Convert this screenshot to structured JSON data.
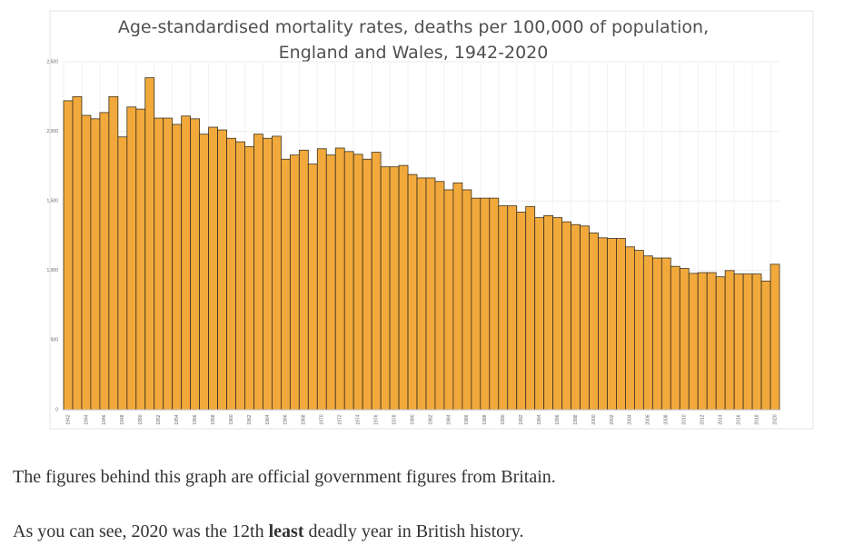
{
  "chart_data": {
    "type": "bar",
    "title": [
      "Age-standardised mortality rates, deaths per 100,000 of population,",
      "England and Wales, 1942-2020"
    ],
    "categories": [
      "1942",
      null,
      "1944",
      null,
      "1946",
      null,
      "1948",
      null,
      "1950",
      null,
      "1952",
      null,
      "1954",
      null,
      "1956",
      null,
      "1958",
      null,
      "1960",
      null,
      "1962",
      null,
      "1964",
      null,
      "1966",
      null,
      "1968",
      null,
      "1970",
      null,
      "1972",
      null,
      "1974",
      null,
      "1976",
      null,
      "1978",
      null,
      "1980",
      null,
      "1982",
      null,
      "1984",
      null,
      "1986",
      null,
      "1988",
      null,
      "1990",
      null,
      "1992",
      null,
      "1994",
      null,
      "1996",
      null,
      "1998",
      null,
      "2000",
      null,
      "2002",
      null,
      "2004",
      null,
      "2006",
      null,
      "2008",
      null,
      "2010",
      null,
      "2012",
      null,
      "2014",
      null,
      "2016",
      null,
      "2018",
      null,
      "2020"
    ],
    "values": [
      2220,
      2250,
      2115,
      2090,
      2135,
      2250,
      1960,
      2175,
      2160,
      2385,
      2095,
      2095,
      2050,
      2110,
      2090,
      1980,
      2030,
      2010,
      1950,
      1925,
      1890,
      1980,
      1950,
      1965,
      1800,
      1830,
      1865,
      1765,
      1875,
      1830,
      1880,
      1855,
      1835,
      1800,
      1850,
      1745,
      1745,
      1755,
      1690,
      1665,
      1665,
      1640,
      1580,
      1630,
      1580,
      1520,
      1520,
      1520,
      1465,
      1465,
      1420,
      1460,
      1380,
      1395,
      1380,
      1350,
      1330,
      1320,
      1270,
      1235,
      1230,
      1230,
      1170,
      1145,
      1105,
      1090,
      1090,
      1030,
      1015,
      980,
      985,
      985,
      955,
      1000,
      975,
      975,
      975,
      925,
      1045
    ],
    "color": "#f2a93b",
    "ylim": [
      0,
      2500
    ],
    "yticks": [
      0,
      500,
      {
        "value": 1000,
        "label": "1,000"
      },
      {
        "value": 1500,
        "label": "1,500"
      },
      {
        "value": 2000,
        "label": "2,000"
      },
      {
        "value": 2500,
        "label": "2,500"
      }
    ],
    "grid": true
  },
  "paragraphs": [
    [
      "The figures behind this graph are official government figures from Britain."
    ],
    [
      "As you can see, 2020 was the 12th ",
      "least",
      " deadly year in British history."
    ]
  ]
}
